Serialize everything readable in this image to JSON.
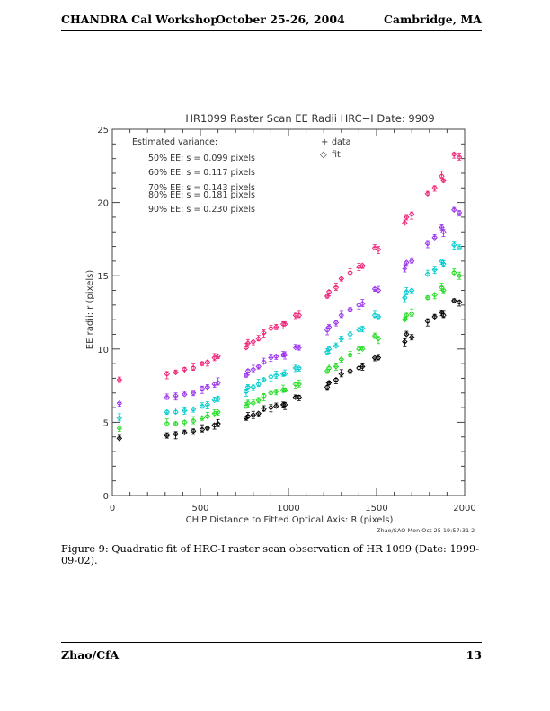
{
  "header": {
    "title": "CHANDRA Cal Workshop",
    "date": "October 25-26, 2004",
    "location": "Cambridge, MA"
  },
  "caption": "Figure 9: Quadratic fit of HRC-I raster scan observation of HR 1099 (Date: 1999-09-02).",
  "footer": {
    "author": "Zhao/CfA",
    "page": "13"
  },
  "chart_data": {
    "type": "scatter",
    "title": "HR1099 Raster Scan EE Radii  HRC−I  Date: 9909",
    "xlabel": "CHIP Distance to Fitted Optical Axis: R (pixels)",
    "ylabel": "EE radii: r (pixels)",
    "xlim": [
      0,
      2000
    ],
    "ylim": [
      0,
      25
    ],
    "xticks": [
      0,
      500,
      1000,
      1500,
      2000
    ],
    "yticks": [
      0,
      5,
      10,
      15,
      20,
      25
    ],
    "grid": false,
    "legend": {
      "placement": "top-center",
      "entries": [
        {
          "symbol": "+",
          "label": "data"
        },
        {
          "symbol": "◇",
          "label": "fit"
        }
      ]
    },
    "annotation_title": "Estimated variance:",
    "annotations": [
      "50% EE: s = 0.099 pixels",
      "60% EE: s = 0.117 pixels",
      "70% EE: s = 0.143 pixels",
      "80% EE: s = 0.181 pixels",
      "90% EE: s = 0.230 pixels"
    ],
    "timestamp": "Zhao/SAO Mon Oct 25 19:57:31 2",
    "x": [
      40,
      310,
      360,
      410,
      460,
      510,
      540,
      580,
      600,
      760,
      770,
      800,
      830,
      860,
      900,
      930,
      970,
      980,
      1040,
      1060,
      1220,
      1230,
      1270,
      1300,
      1350,
      1400,
      1420,
      1490,
      1510,
      1660,
      1670,
      1700,
      1790,
      1830,
      1870,
      1880,
      1940,
      1970
    ],
    "series": [
      {
        "name": "50% EE",
        "color": "#000000",
        "values": [
          3.9,
          4.1,
          4.2,
          4.3,
          4.4,
          4.5,
          4.6,
          4.8,
          4.9,
          5.3,
          5.4,
          5.5,
          5.6,
          5.9,
          6.0,
          6.1,
          6.2,
          6.2,
          6.7,
          6.7,
          7.4,
          7.7,
          7.9,
          8.3,
          8.5,
          8.7,
          8.8,
          9.4,
          9.4,
          10.5,
          11.0,
          10.8,
          11.9,
          12.2,
          12.5,
          12.3,
          13.3,
          13.2
        ]
      },
      {
        "name": "60% EE",
        "color": "#22dd22",
        "values": [
          4.6,
          4.9,
          4.9,
          5.0,
          5.1,
          5.3,
          5.4,
          5.6,
          5.7,
          6.1,
          6.3,
          6.3,
          6.5,
          6.8,
          7.0,
          7.1,
          7.2,
          7.2,
          7.6,
          7.6,
          8.5,
          8.7,
          8.8,
          9.3,
          9.6,
          10.0,
          10.0,
          10.9,
          10.7,
          12.0,
          12.3,
          12.4,
          13.5,
          13.7,
          14.2,
          14.0,
          15.2,
          15.0
        ]
      },
      {
        "name": "70% EE",
        "color": "#00cccc",
        "values": [
          5.3,
          5.7,
          5.7,
          5.8,
          5.9,
          6.1,
          6.2,
          6.5,
          6.6,
          7.1,
          7.4,
          7.4,
          7.6,
          7.9,
          8.1,
          8.2,
          8.3,
          8.3,
          8.7,
          8.7,
          9.8,
          10.0,
          10.2,
          10.7,
          11.0,
          11.3,
          11.4,
          12.3,
          12.2,
          13.5,
          13.9,
          14.0,
          15.1,
          15.4,
          16.0,
          15.8,
          17.1,
          16.9
        ]
      },
      {
        "name": "80% EE",
        "color": "#9933ee",
        "values": [
          6.3,
          6.7,
          6.8,
          6.9,
          7.0,
          7.3,
          7.4,
          7.6,
          7.7,
          8.2,
          8.5,
          8.6,
          8.8,
          9.1,
          9.4,
          9.5,
          9.6,
          9.6,
          10.1,
          10.1,
          11.3,
          11.5,
          11.8,
          12.3,
          12.7,
          13.0,
          13.1,
          14.1,
          14.0,
          15.5,
          15.9,
          16.0,
          17.2,
          17.6,
          18.3,
          18.0,
          19.5,
          19.3
        ]
      },
      {
        "name": "90% EE",
        "color": "#ee2277",
        "values": [
          7.9,
          8.3,
          8.4,
          8.6,
          8.7,
          9.0,
          9.1,
          9.4,
          9.5,
          10.1,
          10.4,
          10.5,
          10.7,
          11.1,
          11.4,
          11.5,
          11.7,
          11.7,
          12.3,
          12.3,
          13.6,
          13.9,
          14.2,
          14.8,
          15.2,
          15.6,
          15.7,
          16.9,
          16.8,
          18.6,
          19.0,
          19.2,
          20.6,
          21.0,
          21.8,
          21.5,
          23.3,
          23.1
        ]
      }
    ]
  }
}
